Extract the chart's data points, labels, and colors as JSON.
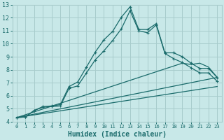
{
  "bg_color": "#c8e8e8",
  "grid_color": "#a8cccc",
  "line_color": "#1a6b6b",
  "xlabel": "Humidex (Indice chaleur)",
  "xlim": [
    -0.5,
    23.5
  ],
  "ylim": [
    4,
    13
  ],
  "yticks": [
    4,
    5,
    6,
    7,
    8,
    9,
    10,
    11,
    12,
    13
  ],
  "xticks": [
    0,
    1,
    2,
    3,
    4,
    5,
    6,
    7,
    8,
    9,
    10,
    11,
    12,
    13,
    14,
    15,
    16,
    17,
    18,
    19,
    20,
    21,
    22,
    23
  ],
  "line1_x": [
    0,
    1,
    2,
    3,
    4,
    5,
    6,
    7,
    8,
    9,
    10,
    11,
    12,
    13,
    14,
    15,
    16,
    17,
    18,
    19,
    20,
    21,
    22,
    23
  ],
  "line1_y": [
    4.3,
    4.35,
    4.85,
    5.15,
    5.2,
    5.3,
    6.7,
    7.05,
    8.2,
    9.35,
    10.3,
    10.95,
    12.05,
    12.85,
    11.1,
    11.1,
    11.55,
    9.3,
    9.3,
    9.0,
    8.5,
    8.1,
    8.1,
    7.4
  ],
  "line2_x": [
    0,
    1,
    2,
    3,
    4,
    5,
    6,
    7,
    8,
    9,
    10,
    11,
    12,
    13,
    14,
    15,
    16,
    17,
    18,
    19,
    20,
    21,
    22,
    23
  ],
  "line2_y": [
    4.3,
    4.35,
    4.85,
    5.1,
    5.15,
    5.2,
    6.55,
    6.75,
    7.75,
    8.75,
    9.45,
    10.25,
    11.15,
    12.55,
    11.0,
    10.85,
    11.45,
    9.25,
    8.85,
    8.55,
    8.15,
    7.75,
    7.75,
    7.1
  ],
  "line3_x": [
    0,
    19,
    20,
    21,
    22,
    23
  ],
  "line3_y": [
    4.3,
    8.5,
    8.4,
    8.5,
    8.2,
    7.4
  ],
  "line4_x": [
    0,
    23
  ],
  "line4_y": [
    4.3,
    7.4
  ],
  "line5_x": [
    0,
    23
  ],
  "line5_y": [
    4.3,
    6.7
  ]
}
